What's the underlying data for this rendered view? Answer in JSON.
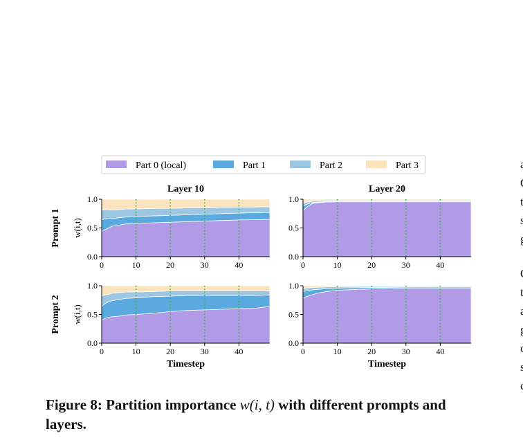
{
  "figure": {
    "caption_prefix": "Figure 8: Partition importance ",
    "caption_math": "w(i, t)",
    "caption_suffix": " with different prompts and layers."
  },
  "side_text": [
    "a",
    "C",
    "t",
    "s",
    "g",
    "C",
    "t",
    "a",
    "g",
    "c",
    "s",
    "c"
  ],
  "chart_data": {
    "type": "area",
    "stacked": true,
    "legend": {
      "placement": "top-center",
      "entries": [
        {
          "name": "Part 0 (local)",
          "color": "#b19ae6"
        },
        {
          "name": "Part 1",
          "color": "#5aa9df"
        },
        {
          "name": "Part 2",
          "color": "#9cc6e1"
        },
        {
          "name": "Part 3",
          "color": "#fbe4bd"
        }
      ]
    },
    "row_labels": [
      "Prompt 1",
      "Prompt 2"
    ],
    "col_titles": [
      "Layer 10",
      "Layer 20"
    ],
    "ylabel": "w(i,t)",
    "xlabel": "Timestep",
    "xlim": [
      0,
      49
    ],
    "ylim": [
      0,
      1
    ],
    "xticks": [
      0,
      10,
      20,
      30,
      40
    ],
    "yticks": [
      0.0,
      0.5,
      1.0
    ],
    "ytick_labels": [
      "0.0",
      "0.5",
      "1.0"
    ],
    "vlines": {
      "x": [
        10,
        20,
        30,
        40
      ],
      "color": "#4caf50",
      "style": "dotted"
    },
    "panels": [
      {
        "row": 0,
        "col": 0,
        "x": [
          0,
          1,
          2,
          3,
          5,
          7,
          10,
          15,
          20,
          25,
          30,
          35,
          40,
          45,
          49
        ],
        "series": [
          {
            "name": "Part 0 (local)",
            "values": [
              0.45,
              0.47,
              0.5,
              0.53,
              0.55,
              0.57,
              0.58,
              0.59,
              0.6,
              0.61,
              0.62,
              0.63,
              0.64,
              0.645,
              0.65
            ]
          },
          {
            "name": "Part 1",
            "values": [
              0.19,
              0.19,
              0.17,
              0.13,
              0.13,
              0.12,
              0.12,
              0.12,
              0.12,
              0.12,
              0.12,
              0.12,
              0.12,
              0.12,
              0.12
            ]
          },
          {
            "name": "Part 2",
            "values": [
              0.17,
              0.16,
              0.15,
              0.15,
              0.14,
              0.14,
              0.13,
              0.13,
              0.12,
              0.12,
              0.11,
              0.11,
              0.105,
              0.1,
              0.1
            ]
          },
          {
            "name": "Part 3",
            "values": [
              0.19,
              0.18,
              0.18,
              0.19,
              0.18,
              0.17,
              0.17,
              0.16,
              0.16,
              0.15,
              0.15,
              0.14,
              0.135,
              0.135,
              0.13
            ]
          }
        ]
      },
      {
        "row": 0,
        "col": 1,
        "x": [
          0,
          1,
          2,
          3,
          5,
          7,
          10,
          15,
          20,
          25,
          30,
          35,
          40,
          45,
          49
        ],
        "series": [
          {
            "name": "Part 0 (local)",
            "values": [
              0.8,
              0.86,
              0.9,
              0.93,
              0.945,
              0.95,
              0.955,
              0.955,
              0.955,
              0.955,
              0.955,
              0.955,
              0.955,
              0.955,
              0.955
            ]
          },
          {
            "name": "Part 1",
            "values": [
              0.08,
              0.05,
              0.03,
              0.015,
              0.01,
              0.01,
              0.008,
              0.008,
              0.008,
              0.008,
              0.008,
              0.008,
              0.008,
              0.008,
              0.008
            ]
          },
          {
            "name": "Part 2",
            "values": [
              0.05,
              0.04,
              0.03,
              0.025,
              0.02,
              0.02,
              0.02,
              0.02,
              0.02,
              0.02,
              0.02,
              0.02,
              0.02,
              0.02,
              0.02
            ]
          },
          {
            "name": "Part 3",
            "values": [
              0.07,
              0.05,
              0.04,
              0.03,
              0.025,
              0.02,
              0.017,
              0.017,
              0.017,
              0.017,
              0.017,
              0.017,
              0.017,
              0.017,
              0.017
            ]
          }
        ]
      },
      {
        "row": 1,
        "col": 0,
        "x": [
          0,
          1,
          2,
          3,
          5,
          7,
          10,
          15,
          20,
          25,
          30,
          35,
          40,
          45,
          49
        ],
        "series": [
          {
            "name": "Part 0 (local)",
            "values": [
              0.4,
              0.43,
              0.45,
              0.46,
              0.47,
              0.49,
              0.5,
              0.52,
              0.55,
              0.57,
              0.58,
              0.59,
              0.6,
              0.61,
              0.64
            ]
          },
          {
            "name": "Part 1",
            "values": [
              0.24,
              0.26,
              0.27,
              0.28,
              0.29,
              0.29,
              0.29,
              0.29,
              0.27,
              0.26,
              0.25,
              0.24,
              0.23,
              0.22,
              0.2
            ]
          },
          {
            "name": "Part 2",
            "values": [
              0.18,
              0.15,
              0.13,
              0.13,
              0.12,
              0.11,
              0.1,
              0.09,
              0.09,
              0.08,
              0.08,
              0.08,
              0.08,
              0.08,
              0.07
            ]
          },
          {
            "name": "Part 3",
            "values": [
              0.18,
              0.16,
              0.15,
              0.13,
              0.12,
              0.11,
              0.11,
              0.1,
              0.09,
              0.09,
              0.09,
              0.09,
              0.09,
              0.09,
              0.09
            ]
          }
        ]
      },
      {
        "row": 1,
        "col": 1,
        "x": [
          0,
          1,
          2,
          3,
          5,
          7,
          10,
          15,
          20,
          25,
          30,
          35,
          40,
          45,
          49
        ],
        "series": [
          {
            "name": "Part 0 (local)",
            "values": [
              0.78,
              0.81,
              0.83,
              0.85,
              0.88,
              0.9,
              0.92,
              0.935,
              0.945,
              0.95,
              0.955,
              0.955,
              0.955,
              0.955,
              0.955
            ]
          },
          {
            "name": "Part 1",
            "values": [
              0.12,
              0.1,
              0.09,
              0.08,
              0.06,
              0.05,
              0.04,
              0.03,
              0.025,
              0.022,
              0.02,
              0.02,
              0.02,
              0.02,
              0.02
            ]
          },
          {
            "name": "Part 2",
            "values": [
              0.05,
              0.05,
              0.045,
              0.04,
              0.035,
              0.03,
              0.025,
              0.02,
              0.018,
              0.016,
              0.015,
              0.015,
              0.015,
              0.015,
              0.015
            ]
          },
          {
            "name": "Part 3",
            "values": [
              0.05,
              0.04,
              0.035,
              0.03,
              0.025,
              0.02,
              0.015,
              0.015,
              0.012,
              0.012,
              0.01,
              0.01,
              0.01,
              0.01,
              0.01
            ]
          }
        ]
      }
    ]
  }
}
